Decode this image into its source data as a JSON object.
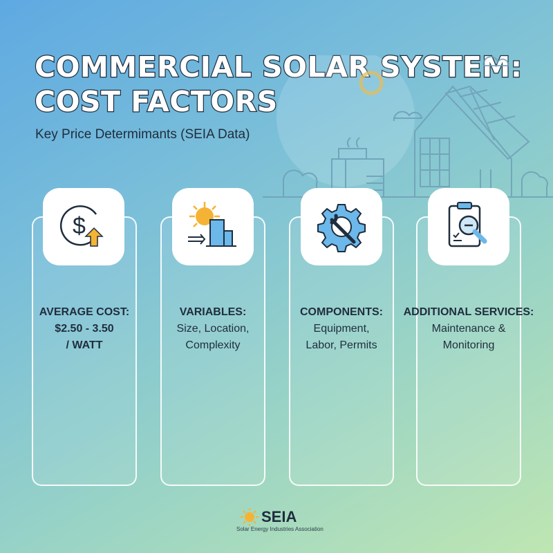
{
  "header": {
    "title_line1": "COMMERCIAL SOLAR SYSTEM:",
    "title_line2": "COST FACTORS",
    "subtitle": "Key Price Determimants (SEIA Data)"
  },
  "cards": [
    {
      "icon": "dollar-up-icon",
      "heading": "AVERAGE COST:",
      "line1": "$2.50 - 3.50",
      "line2": "/ WATT",
      "bold_body": true
    },
    {
      "icon": "sun-building-icon",
      "heading": "VARIABLES:",
      "line1": "Size, Location,",
      "line2": "Complexity"
    },
    {
      "icon": "gear-wrench-icon",
      "heading": "COMPONENTS:",
      "line1": "Equipment,",
      "line2": "Labor, Permits"
    },
    {
      "icon": "clipboard-search-icon",
      "heading": "ADDITIONAL SERVICES:",
      "line1": "Maintenance &",
      "line2": "Monitoring"
    }
  ],
  "footer": {
    "logo_name": "SEIA",
    "logo_full": "Solar Energy Industries Association"
  },
  "colors": {
    "accent_yellow": "#f5b335",
    "accent_blue": "#6cb8ea",
    "ink": "#1f2d3d"
  }
}
